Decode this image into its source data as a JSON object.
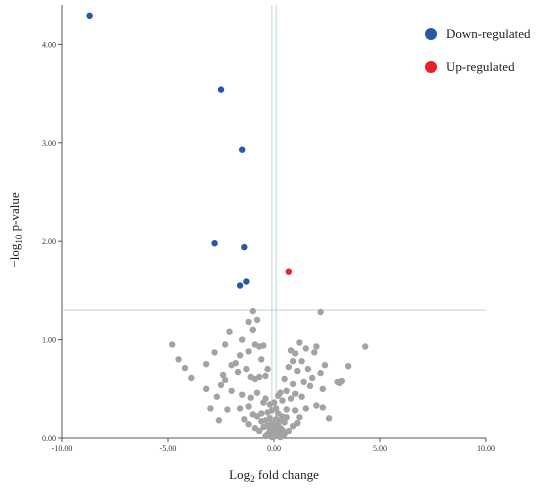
{
  "chart_data": {
    "type": "scatter",
    "title": "",
    "xlabel_main": "Log",
    "xlabel_sub": "2",
    "xlabel_rest": " fold change",
    "ylabel_main": "−log",
    "ylabel_sub": "10",
    "ylabel_rest": " p-value",
    "xlim": [
      -10,
      10
    ],
    "ylim": [
      0,
      4.4
    ],
    "xticks": [
      -10,
      -5,
      0,
      5,
      10
    ],
    "xtick_labels": [
      "-10.00",
      "-5.00",
      "0.00",
      "5.00",
      "10.00"
    ],
    "yticks": [
      0,
      1,
      2,
      3,
      4
    ],
    "ytick_labels": [
      "0.00",
      "1.00",
      "2.00",
      "3.00",
      "4.00"
    ],
    "threshold_lines": {
      "x": [
        -0.1,
        0.1
      ],
      "y": 1.3
    },
    "legend": {
      "position": "top-right"
    },
    "series": [
      {
        "name": "Down-regulated",
        "color": "#2a57a8",
        "points": [
          [
            -8.7,
            4.29
          ],
          [
            -2.5,
            3.54
          ],
          [
            -1.5,
            2.93
          ],
          [
            -2.8,
            1.98
          ],
          [
            -1.4,
            1.94
          ],
          [
            -1.3,
            1.59
          ],
          [
            -1.6,
            1.55
          ]
        ]
      },
      {
        "name": "Up-regulated",
        "color": "#e8202a",
        "points": [
          [
            0.7,
            1.69
          ]
        ]
      },
      {
        "name": "",
        "color": "#a3a3a3",
        "points": [
          [
            2.2,
            1.28
          ],
          [
            -1.0,
            1.29
          ],
          [
            -1.2,
            1.18
          ],
          [
            -0.8,
            1.2
          ],
          [
            -1.0,
            1.1
          ],
          [
            -2.1,
            1.08
          ],
          [
            -1.5,
            1.0
          ],
          [
            1.2,
            0.97
          ],
          [
            2.0,
            0.93
          ],
          [
            -0.5,
            0.94
          ],
          [
            4.3,
            0.93
          ],
          [
            -4.8,
            0.95
          ],
          [
            -2.3,
            0.95
          ],
          [
            -0.9,
            0.95
          ],
          [
            -0.7,
            0.93
          ],
          [
            1.5,
            0.91
          ],
          [
            0.8,
            0.89
          ],
          [
            1.0,
            0.86
          ],
          [
            1.9,
            0.87
          ],
          [
            -1.2,
            0.88
          ],
          [
            -2.8,
            0.87
          ],
          [
            -1.6,
            0.84
          ],
          [
            -4.5,
            0.8
          ],
          [
            0.9,
            0.78
          ],
          [
            1.3,
            0.78
          ],
          [
            -1.8,
            0.76
          ],
          [
            -2.0,
            0.74
          ],
          [
            -3.2,
            0.75
          ],
          [
            2.4,
            0.74
          ],
          [
            3.5,
            0.73
          ],
          [
            -4.2,
            0.71
          ],
          [
            -1.3,
            0.7
          ],
          [
            1.6,
            0.7
          ],
          [
            1.1,
            0.68
          ],
          [
            2.2,
            0.66
          ],
          [
            -2.4,
            0.64
          ],
          [
            -1.1,
            0.62
          ],
          [
            -0.7,
            0.62
          ],
          [
            -0.4,
            0.63
          ],
          [
            -0.9,
            0.6
          ],
          [
            -2.3,
            0.59
          ],
          [
            0.5,
            0.6
          ],
          [
            1.8,
            0.61
          ],
          [
            -3.9,
            0.61
          ],
          [
            3.2,
            0.58
          ],
          [
            3.1,
            0.56
          ],
          [
            1.4,
            0.57
          ],
          [
            0.9,
            0.55
          ],
          [
            -2.5,
            0.54
          ],
          [
            1.7,
            0.53
          ],
          [
            2.3,
            0.5
          ],
          [
            -3.2,
            0.5
          ],
          [
            -2.0,
            0.48
          ],
          [
            0.6,
            0.48
          ],
          [
            1.0,
            0.45
          ],
          [
            0.3,
            0.46
          ],
          [
            -0.8,
            0.46
          ],
          [
            -1.5,
            0.44
          ],
          [
            -2.7,
            0.42
          ],
          [
            -1.1,
            0.41
          ],
          [
            1.3,
            0.42
          ],
          [
            0.8,
            0.4
          ],
          [
            0.4,
            0.38
          ],
          [
            -0.5,
            0.36
          ],
          [
            -0.2,
            0.34
          ],
          [
            2.0,
            0.33
          ],
          [
            2.3,
            0.31
          ],
          [
            -1.2,
            0.32
          ],
          [
            -1.6,
            0.3
          ],
          [
            1.5,
            0.3
          ],
          [
            0.6,
            0.29
          ],
          [
            1.0,
            0.28
          ],
          [
            -2.2,
            0.29
          ],
          [
            -3.0,
            0.3
          ],
          [
            -0.3,
            0.26
          ],
          [
            -0.6,
            0.25
          ],
          [
            0.2,
            0.25
          ],
          [
            -1.0,
            0.24
          ],
          [
            -0.8,
            0.22
          ],
          [
            0.4,
            0.22
          ],
          [
            0.6,
            0.21
          ],
          [
            -0.2,
            0.2
          ],
          [
            0.1,
            0.19
          ],
          [
            -0.4,
            0.18
          ],
          [
            0.3,
            0.18
          ],
          [
            -0.6,
            0.17
          ],
          [
            0.5,
            0.16
          ],
          [
            -0.1,
            0.15
          ],
          [
            0.2,
            0.14
          ],
          [
            -0.3,
            0.13
          ],
          [
            0.0,
            0.12
          ],
          [
            -0.5,
            0.11
          ],
          [
            0.3,
            0.1
          ],
          [
            -0.2,
            0.09
          ],
          [
            0.1,
            0.08
          ],
          [
            0.4,
            0.08
          ],
          [
            -0.1,
            0.06
          ],
          [
            0.2,
            0.05
          ],
          [
            -0.3,
            0.04
          ],
          [
            0.0,
            0.03
          ],
          [
            0.1,
            0.02
          ],
          [
            -0.1,
            0.01
          ],
          [
            0.3,
            0.01
          ],
          [
            -0.4,
            0.02
          ],
          [
            0.5,
            0.04
          ],
          [
            0.7,
            0.07
          ],
          [
            -0.7,
            0.07
          ],
          [
            0.9,
            0.12
          ],
          [
            -0.9,
            0.1
          ],
          [
            1.1,
            0.15
          ],
          [
            -1.2,
            0.14
          ],
          [
            -1.4,
            0.19
          ],
          [
            1.2,
            0.21
          ],
          [
            2.6,
            0.2
          ],
          [
            -2.6,
            0.18
          ],
          [
            -0.4,
            0.4
          ],
          [
            0.0,
            0.36
          ],
          [
            0.1,
            0.3
          ],
          [
            -0.1,
            0.28
          ],
          [
            0.2,
            0.43
          ],
          [
            -1.7,
            0.67
          ],
          [
            0.7,
            0.72
          ],
          [
            -0.6,
            0.8
          ],
          [
            3.0,
            0.57
          ],
          [
            -0.3,
            0.7
          ]
        ]
      }
    ]
  }
}
